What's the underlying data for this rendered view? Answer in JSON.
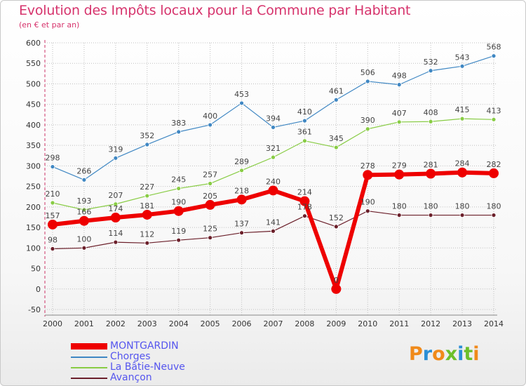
{
  "header": {
    "title": "Evolution des Impôts locaux pour la Commune par Habitant",
    "subtitle": "(en € et par an)"
  },
  "colors": {
    "title": "#d6336c",
    "MONTGARDIN": "#ee0000",
    "Chorges": "#3f87c3",
    "La Bâtie-Neuve": "#88cc44",
    "Avançon": "#6b1f2a",
    "grid": "#c0c0c0",
    "axis": "#cc3366"
  },
  "legend": {
    "items": [
      {
        "label": "MONTGARDIN",
        "color": "#ee0000",
        "text_color": "#5555ee"
      },
      {
        "label": "Chorges",
        "color": "#3f87c3",
        "text_color": "#5555ee"
      },
      {
        "label": "La Bâtie-Neuve",
        "color": "#88cc44",
        "text_color": "#5555ee"
      },
      {
        "label": "Avançon",
        "color": "#6b1f2a",
        "text_color": "#5555ee"
      }
    ]
  },
  "logo": {
    "text": "Proxiti",
    "letter_colors": [
      "#f08a1a",
      "#2b8fd6",
      "#f08a1a",
      "#6cbf2a",
      "#2b8fd6",
      "#6cbf2a",
      "#f08a1a"
    ]
  },
  "chart_data": {
    "type": "line",
    "title": "Evolution des Impôts locaux pour la Commune par Habitant",
    "subtitle": "(en € et par an)",
    "xlabel": "",
    "ylabel": "",
    "x": [
      2000,
      2001,
      2002,
      2003,
      2004,
      2005,
      2006,
      2007,
      2008,
      2009,
      2010,
      2011,
      2012,
      2013,
      2014
    ],
    "ylim": [
      -50,
      600
    ],
    "yticks": [
      -50,
      0,
      50,
      100,
      150,
      200,
      250,
      300,
      350,
      400,
      450,
      500,
      550,
      600
    ],
    "grid": true,
    "legend_position": "bottom-left",
    "series": [
      {
        "name": "Avançon",
        "values": [
          98,
          100,
          114,
          112,
          119,
          125,
          137,
          141,
          178,
          152,
          190,
          180,
          180,
          180,
          180
        ]
      },
      {
        "name": "La Bâtie-Neuve",
        "values": [
          210,
          193,
          207,
          227,
          245,
          257,
          289,
          321,
          361,
          345,
          390,
          407,
          408,
          415,
          413
        ]
      },
      {
        "name": "Chorges",
        "values": [
          298,
          266,
          319,
          352,
          383,
          400,
          453,
          394,
          410,
          461,
          506,
          498,
          532,
          543,
          568
        ]
      },
      {
        "name": "MONTGARDIN",
        "values": [
          157,
          166,
          174,
          181,
          190,
          205,
          218,
          240,
          214,
          0,
          278,
          279,
          281,
          284,
          282
        ]
      }
    ]
  }
}
